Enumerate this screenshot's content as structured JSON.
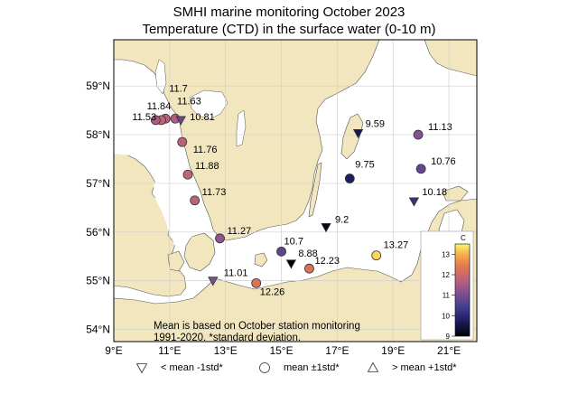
{
  "title": {
    "line1": "SMHI marine monitoring October 2023",
    "line2": "Temperature (CTD) in the surface water (0-10 m)"
  },
  "map": {
    "lon_ticks": [
      "9°E",
      "11°E",
      "13°E",
      "15°E",
      "17°E",
      "19°E",
      "21°E"
    ],
    "lat_ticks": [
      "54°N",
      "55°N",
      "56°N",
      "57°N",
      "58°N",
      "59°N"
    ],
    "extent": {
      "lon": [
        9,
        22
      ],
      "lat": [
        53.75,
        59.95
      ]
    },
    "colors": {
      "land": "#f2e6bf",
      "sea": "#ffffff",
      "grid": "#cfcfcf",
      "coast": "#555555"
    }
  },
  "note": {
    "line1": "Mean is based on October station monitoring",
    "line2": "1991-2020. *standard deviation."
  },
  "colorbar": {
    "label": "C",
    "ticks": [
      "9",
      "10",
      "11",
      "12",
      "13"
    ],
    "range": [
      9,
      13.5
    ]
  },
  "stations": [
    {
      "label": "11.7",
      "lon": 10.85,
      "lat": 58.33,
      "value": 11.7,
      "marker": "circle",
      "lx": -2,
      "ly": -30
    },
    {
      "label": "11.84",
      "lon": 10.7,
      "lat": 58.3,
      "value": 11.84,
      "marker": "circle",
      "lx": -22,
      "ly": -12
    },
    {
      "label": "11.63",
      "lon": 11.2,
      "lat": 58.33,
      "value": 11.63,
      "marker": "circle",
      "lx": -4,
      "ly": -16
    },
    {
      "label": "11.53",
      "lon": 10.5,
      "lat": 58.3,
      "value": 11.53,
      "marker": "circle",
      "lx": -32,
      "ly": 0
    },
    {
      "label": "10.81",
      "lon": 11.4,
      "lat": 58.3,
      "value": 10.81,
      "marker": "tri_down",
      "lx": 4,
      "ly": 0
    },
    {
      "label": "11.76",
      "lon": 11.45,
      "lat": 57.85,
      "value": 11.76,
      "marker": "circle",
      "lx": 6,
      "ly": 12
    },
    {
      "label": "11.88",
      "lon": 11.65,
      "lat": 57.18,
      "value": 11.88,
      "marker": "circle",
      "lx": 2,
      "ly": -6
    },
    {
      "label": "11.73",
      "lon": 11.9,
      "lat": 56.65,
      "value": 11.73,
      "marker": "circle",
      "lx": 2,
      "ly": -6
    },
    {
      "label": "11.27",
      "lon": 12.8,
      "lat": 55.87,
      "value": 11.27,
      "marker": "circle",
      "lx": 2,
      "ly": -5
    },
    {
      "label": "11.01",
      "lon": 12.55,
      "lat": 55.0,
      "value": 11.01,
      "marker": "tri_down",
      "lx": 6,
      "ly": -5
    },
    {
      "label": "12.26",
      "lon": 14.1,
      "lat": 54.95,
      "value": 12.26,
      "marker": "circle",
      "lx": -2,
      "ly": 13
    },
    {
      "label": "10.7",
      "lon": 15.0,
      "lat": 55.6,
      "value": 10.7,
      "marker": "circle",
      "lx": -3,
      "ly": -8
    },
    {
      "label": "8.88",
      "lon": 15.35,
      "lat": 55.35,
      "value": 8.88,
      "marker": "tri_down",
      "lx": 2,
      "ly": -8
    },
    {
      "label": "12.23",
      "lon": 16.0,
      "lat": 55.25,
      "value": 12.23,
      "marker": "circle",
      "lx": 0,
      "ly": -5
    },
    {
      "label": "9.2",
      "lon": 16.6,
      "lat": 56.1,
      "value": 9.2,
      "marker": "tri_down",
      "lx": 4,
      "ly": -5
    },
    {
      "label": "9.75",
      "lon": 17.45,
      "lat": 57.1,
      "value": 9.75,
      "marker": "circle",
      "lx": 0,
      "ly": -12
    },
    {
      "label": "9.59",
      "lon": 17.75,
      "lat": 58.03,
      "value": 9.59,
      "marker": "tri_down",
      "lx": 2,
      "ly": -7
    },
    {
      "label": "13.27",
      "lon": 18.4,
      "lat": 55.52,
      "value": 13.27,
      "marker": "circle",
      "lx": 2,
      "ly": -8
    },
    {
      "label": "11.13",
      "lon": 19.9,
      "lat": 58.0,
      "value": 11.13,
      "marker": "circle",
      "lx": 5,
      "ly": -5
    },
    {
      "label": "10.76",
      "lon": 20.0,
      "lat": 57.3,
      "value": 10.76,
      "marker": "circle",
      "lx": 5,
      "ly": -5
    },
    {
      "label": "10.18",
      "lon": 19.75,
      "lat": 56.63,
      "value": 10.18,
      "marker": "tri_down",
      "lx": 3,
      "ly": -7
    }
  ],
  "legend": [
    {
      "marker": "tri_down",
      "label": "< mean -1std*"
    },
    {
      "marker": "circle",
      "label": "mean ±1std*"
    },
    {
      "marker": "tri_up",
      "label": "> mean +1std*"
    }
  ]
}
